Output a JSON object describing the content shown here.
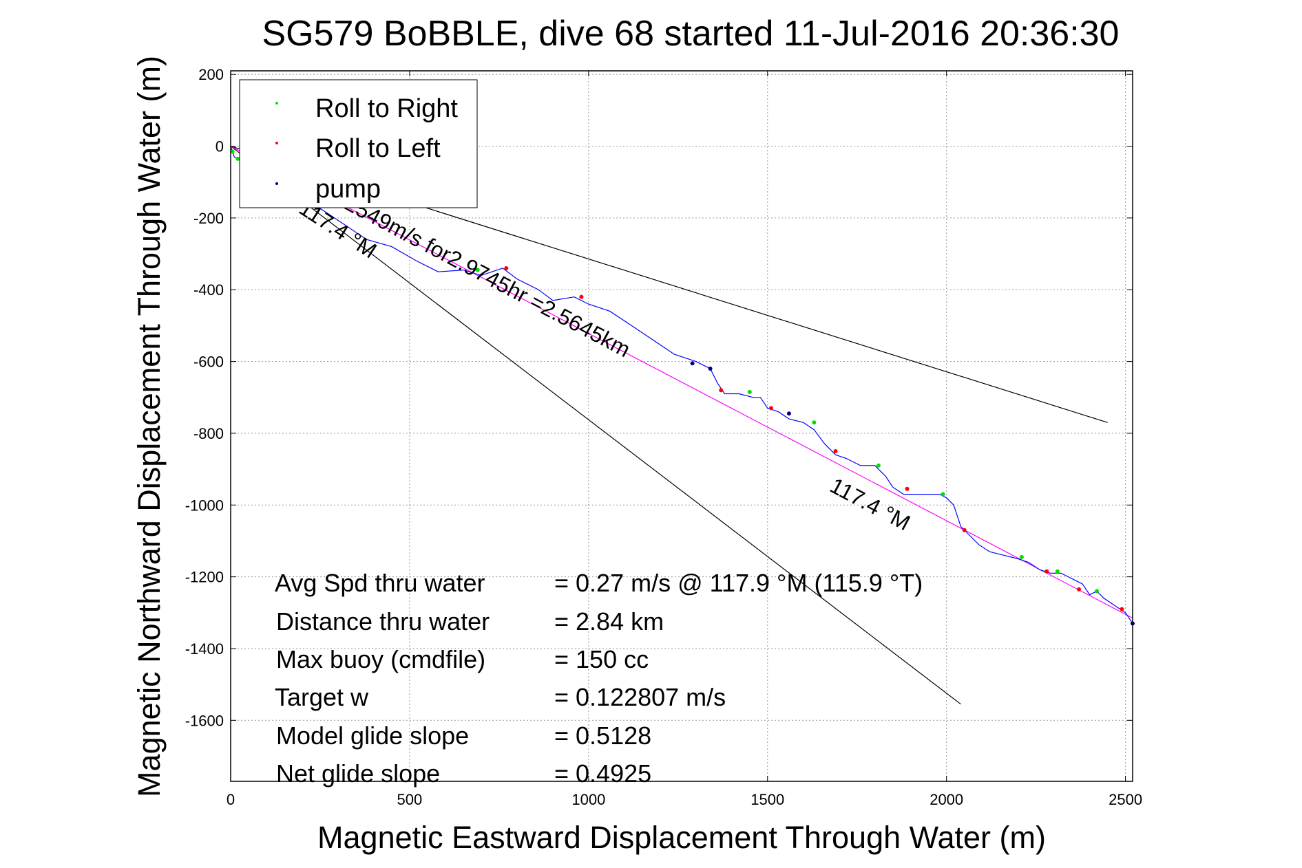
{
  "chart_data": {
    "type": "line",
    "title": "SG579 BoBBLE, dive 68 started 11-Jul-2016 20:36:30",
    "xlabel": "Magnetic Eastward Displacement Through Water (m)",
    "ylabel": "Magnetic Northward Displacement Through Water (m)",
    "xlim": [
      0,
      2520
    ],
    "ylim": [
      -1770,
      210
    ],
    "xticks": [
      0,
      500,
      1000,
      1500,
      2000,
      2500
    ],
    "yticks": [
      200,
      0,
      -200,
      -400,
      -600,
      -800,
      -1000,
      -1200,
      -1400,
      -1600
    ],
    "grid": true,
    "legend": {
      "placement": "top-left",
      "entries": [
        {
          "label": "Roll to Right",
          "color": "#00dd00"
        },
        {
          "label": "Roll to Left",
          "color": "#ff0000"
        },
        {
          "label": "pump",
          "color": "#000080"
        }
      ]
    },
    "track": {
      "color": "#0000ff",
      "x": [
        0,
        10,
        30,
        60,
        100,
        150,
        200,
        260,
        320,
        380,
        450,
        520,
        580,
        650,
        700,
        760,
        800,
        860,
        900,
        960,
        1000,
        1060,
        1120,
        1180,
        1240,
        1300,
        1340,
        1360,
        1380,
        1420,
        1460,
        1480,
        1500,
        1530,
        1560,
        1600,
        1630,
        1660,
        1690,
        1720,
        1760,
        1800,
        1830,
        1850,
        1880,
        1900,
        1940,
        1980,
        2000,
        2020,
        2040,
        2060,
        2090,
        2120,
        2160,
        2200,
        2230,
        2260,
        2290,
        2320,
        2340,
        2360,
        2380,
        2400,
        2420,
        2440,
        2470,
        2500,
        2520
      ],
      "y": [
        0,
        -30,
        -40,
        -60,
        -80,
        -110,
        -140,
        -180,
        -220,
        -260,
        -280,
        -320,
        -350,
        -345,
        -360,
        -340,
        -370,
        -400,
        -430,
        -420,
        -440,
        -460,
        -500,
        -540,
        -580,
        -600,
        -620,
        -660,
        -690,
        -690,
        -700,
        -700,
        -730,
        -740,
        -760,
        -770,
        -790,
        -830,
        -860,
        -870,
        -890,
        -890,
        -920,
        -950,
        -970,
        -970,
        -970,
        -970,
        -980,
        -1000,
        -1060,
        -1080,
        -1110,
        -1130,
        -1140,
        -1150,
        -1160,
        -1180,
        -1190,
        -1190,
        -1200,
        -1210,
        -1220,
        -1250,
        -1240,
        -1260,
        -1280,
        -1300,
        -1330
      ]
    },
    "heading_line": {
      "color": "#ff00ff",
      "x": [
        0,
        2520
      ],
      "y": [
        0,
        -1315
      ]
    },
    "guide_lines": [
      {
        "color": "#000000",
        "x": [
          0,
          2450
        ],
        "y": [
          0,
          -770
        ]
      },
      {
        "color": "#000000",
        "x": [
          0,
          2040
        ],
        "y": [
          0,
          -1555
        ]
      }
    ],
    "roll_right_points": {
      "color": "#00dd00",
      "x": [
        5,
        20,
        690,
        1450,
        1630,
        1810,
        1990,
        2210,
        2310,
        2420
      ],
      "y": [
        -15,
        -35,
        -345,
        -685,
        -770,
        -890,
        -970,
        -1145,
        -1185,
        -1240
      ]
    },
    "roll_left_points": {
      "color": "#ff0000",
      "x": [
        770,
        980,
        1370,
        1510,
        1690,
        1890,
        2050,
        2280,
        2370,
        2490
      ],
      "y": [
        -340,
        -420,
        -680,
        -730,
        -850,
        -955,
        -1070,
        -1185,
        -1235,
        -1290
      ]
    },
    "pump_points": {
      "color": "#000080",
      "x": [
        1290,
        1340,
        1560,
        2520
      ],
      "y": [
        -605,
        -620,
        -745,
        -1330
      ]
    },
    "annotations": {
      "heading_top": "117.4 °M",
      "heading_mid": "117.4 °M",
      "track_label": "0.2549m/s for2.9745hr =2.5645km"
    },
    "stats": [
      {
        "label": "Avg Spd thru water",
        "value": "=  0.27 m/s @ 117.9 °M (115.9 °T)"
      },
      {
        "label": "Distance thru water",
        "value": "=  2.84 km"
      },
      {
        "label": "Max buoy (cmdfile)",
        "value": "= 150 cc"
      },
      {
        "label": "Target w",
        "value": "= 0.122807 m/s"
      },
      {
        "label": "Model glide slope",
        "value": "= 0.5128"
      },
      {
        "label": "Net glide slope",
        "value": "= 0.4925"
      }
    ]
  }
}
